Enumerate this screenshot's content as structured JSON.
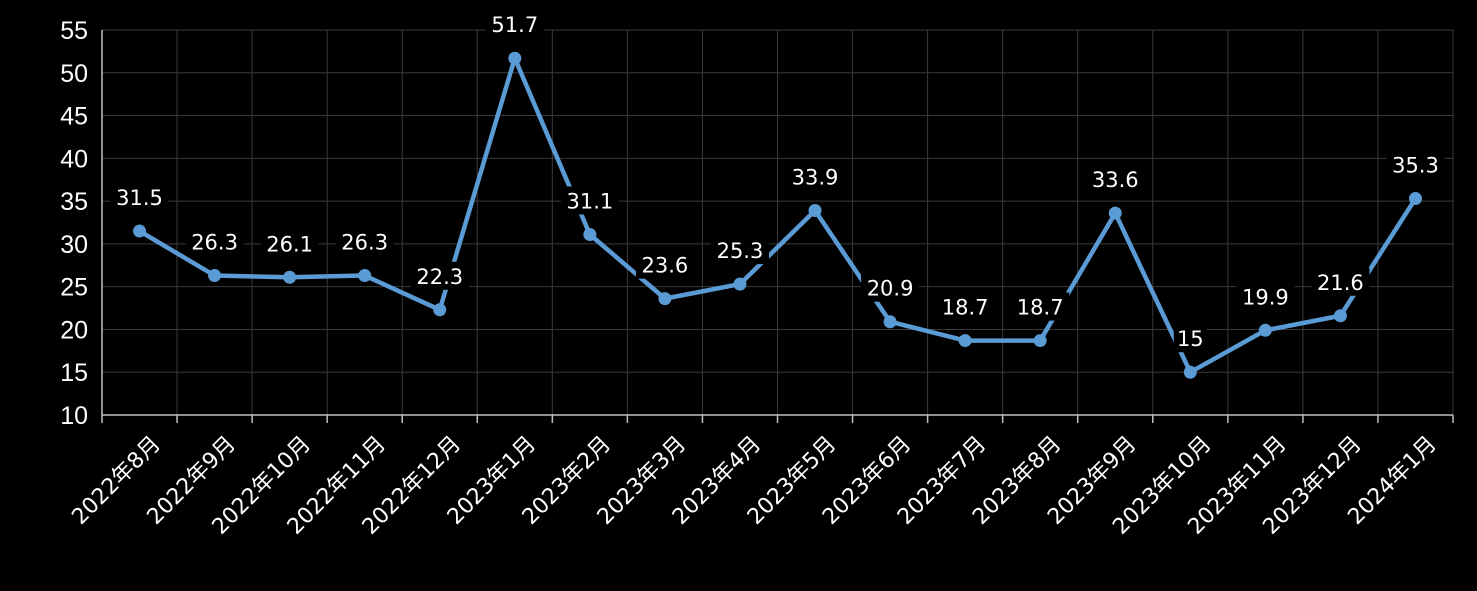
{
  "chart_data": {
    "type": "line",
    "categories": [
      "2022年8月",
      "2022年9月",
      "2022年10月",
      "2022年11月",
      "2022年12月",
      "2023年1月",
      "2023年2月",
      "2023年3月",
      "2023年4月",
      "2023年5月",
      "2023年6月",
      "2023年7月",
      "2023年8月",
      "2023年9月",
      "2023年10月",
      "2023年11月",
      "2023年12月",
      "2024年1月"
    ],
    "series": [
      {
        "values": [
          31.5,
          26.3,
          26.1,
          26.3,
          22.3,
          51.7,
          31.1,
          23.6,
          25.3,
          33.9,
          20.9,
          18.7,
          18.7,
          33.6,
          15,
          19.9,
          21.6,
          35.3
        ],
        "labels": [
          "31.5",
          "26.3",
          "26.1",
          "26.3",
          "22.3",
          "51.7",
          "31.1",
          "23.6",
          "25.3",
          "33.9",
          "20.9",
          "18.7",
          "18.7",
          "33.6",
          "15",
          "19.9",
          "21.6",
          "35.3"
        ]
      }
    ],
    "yticks": [
      "10",
      "15",
      "20",
      "25",
      "30",
      "35",
      "40",
      "45",
      "50",
      "55"
    ],
    "ylim": [
      10,
      55
    ],
    "title": "",
    "xlabel": "",
    "ylabel": "",
    "grid": true,
    "legend": "none",
    "colors": {
      "background": "#000000",
      "line": "#5B9BD5",
      "grid": "#3a3a3a",
      "axis": "#bfbfbf",
      "text": "#ffffff"
    }
  }
}
